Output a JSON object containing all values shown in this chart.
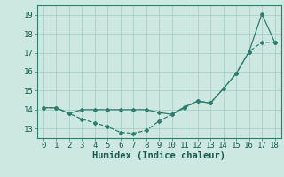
{
  "line1_x": [
    0,
    1,
    2,
    3,
    4,
    5,
    6,
    7,
    8,
    9,
    10,
    11,
    12,
    13,
    14,
    15,
    16,
    17,
    18
  ],
  "line1_y": [
    14.1,
    14.1,
    13.8,
    13.5,
    13.3,
    13.1,
    12.8,
    12.75,
    12.9,
    13.4,
    13.75,
    14.1,
    14.45,
    14.35,
    15.1,
    15.9,
    17.05,
    17.55,
    17.55
  ],
  "line2_x": [
    0,
    1,
    2,
    3,
    4,
    5,
    6,
    7,
    8,
    9,
    10,
    11,
    12,
    13,
    14,
    15,
    16,
    17,
    18
  ],
  "line2_y": [
    14.1,
    14.1,
    13.8,
    14.0,
    14.0,
    14.0,
    14.0,
    14.0,
    14.0,
    13.85,
    13.75,
    14.15,
    14.45,
    14.35,
    15.1,
    15.9,
    17.05,
    19.05,
    17.55
  ],
  "color": "#2e7d6e",
  "bg_color": "#cce8e0",
  "grid_color": "#aacfc8",
  "xlabel": "Humidex (Indice chaleur)",
  "xlim": [
    -0.5,
    18.5
  ],
  "ylim": [
    12.5,
    19.5
  ],
  "xticks": [
    0,
    1,
    2,
    3,
    4,
    5,
    6,
    7,
    8,
    9,
    10,
    11,
    12,
    13,
    14,
    15,
    16,
    17,
    18
  ],
  "yticks": [
    13,
    14,
    15,
    16,
    17,
    18,
    19
  ],
  "xlabel_fontsize": 7.5,
  "tick_fontsize": 6.5
}
